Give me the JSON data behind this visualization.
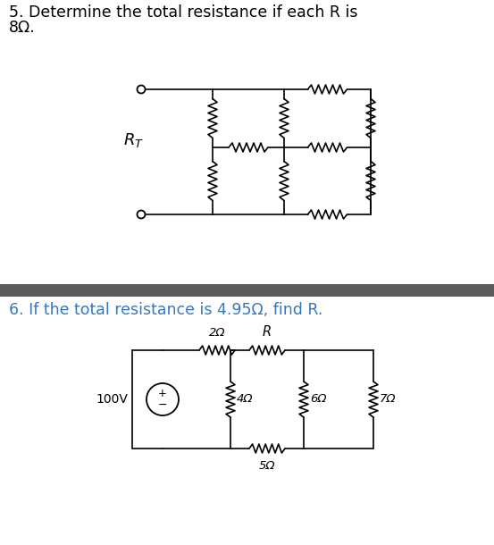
{
  "title5_line1": "5. Determine the total resistance if each R is",
  "title5_line2": "8Ω.",
  "title6": "6. If the total resistance is 4.95Ω, find R.",
  "title5_color": "#000000",
  "title6_color": "#3777c0",
  "bg_color": "#ffffff",
  "divider_color": "#5a5a5a",
  "fig_width": 5.53,
  "fig_height": 6.1,
  "dpi": 100
}
